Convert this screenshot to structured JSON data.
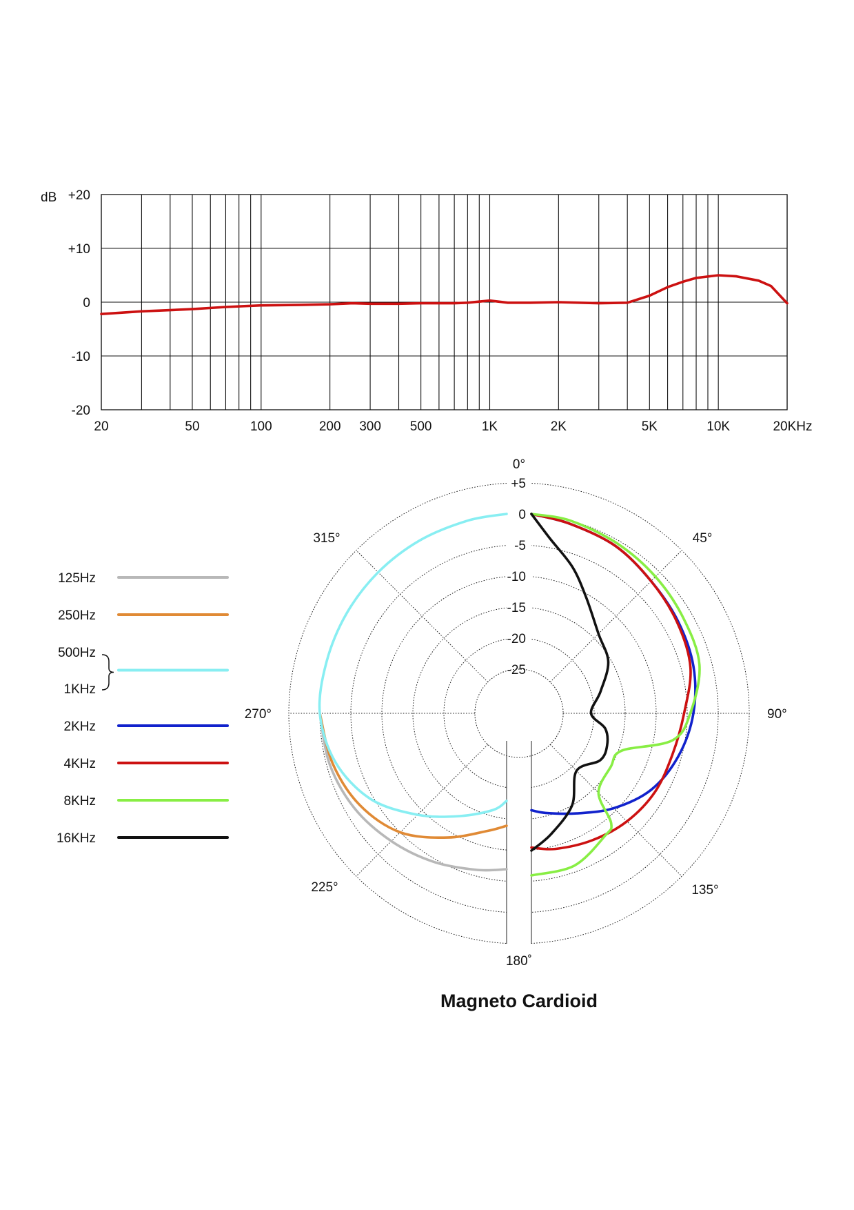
{
  "charts": [
    {
      "chart_data": {
        "type": "line",
        "title": "",
        "ylabel": "dB",
        "xscale": "log",
        "xlim": [
          20,
          20000
        ],
        "ylim": [
          -20,
          20
        ],
        "grid": true,
        "x_ticks": [
          {
            "value": 20,
            "label": "20"
          },
          {
            "value": 50,
            "label": "50"
          },
          {
            "value": 100,
            "label": "100"
          },
          {
            "value": 200,
            "label": "200"
          },
          {
            "value": 300,
            "label": "300"
          },
          {
            "value": 500,
            "label": "500"
          },
          {
            "value": 1000,
            "label": "1K"
          },
          {
            "value": 2000,
            "label": "2K"
          },
          {
            "value": 5000,
            "label": "5K"
          },
          {
            "value": 10000,
            "label": "10K"
          },
          {
            "value": 20000,
            "label": "20KHz"
          }
        ],
        "y_ticks": [
          {
            "value": 20,
            "label": "+20"
          },
          {
            "value": 10,
            "label": "+10"
          },
          {
            "value": 0,
            "label": "0"
          },
          {
            "value": -10,
            "label": "-10"
          },
          {
            "value": -20,
            "label": "-20"
          }
        ],
        "series": [
          {
            "color": "#cc1111",
            "x": [
              20,
              30,
              50,
              70,
              100,
              150,
              200,
              250,
              300,
              400,
              500,
              700,
              800,
              1000,
              1200,
              1500,
              2000,
              3000,
              4000,
              5000,
              6000,
              7000,
              8000,
              10000,
              12000,
              15000,
              17000,
              20000
            ],
            "y": [
              -2.2,
              -1.7,
              -1.3,
              -0.9,
              -0.6,
              -0.5,
              -0.4,
              -0.2,
              -0.3,
              -0.3,
              -0.2,
              -0.2,
              -0.1,
              0.3,
              -0.1,
              -0.1,
              0,
              -0.2,
              -0.1,
              1.2,
              2.8,
              3.8,
              4.5,
              5.0,
              4.8,
              4.0,
              3.0,
              -0.2
            ]
          }
        ]
      }
    },
    {
      "chart_data": {
        "type": "polar",
        "title": "Magneto Cardioid",
        "angle_ticks": [
          {
            "angle": 0,
            "label": "0°"
          },
          {
            "angle": 45,
            "label": "45°"
          },
          {
            "angle": 90,
            "label": "90°"
          },
          {
            "angle": 135,
            "label": "135°"
          },
          {
            "angle": 180,
            "label": "180˚"
          },
          {
            "angle": 225,
            "label": "225°"
          },
          {
            "angle": 270,
            "label": "270°"
          },
          {
            "angle": 315,
            "label": "315°"
          }
        ],
        "radial_range_db": [
          -30,
          5
        ],
        "radial_ticks": [
          {
            "value": 5,
            "label": "+5"
          },
          {
            "value": 0,
            "label": "0"
          },
          {
            "value": -5,
            "label": "-5"
          },
          {
            "value": -10,
            "label": "-10"
          },
          {
            "value": -15,
            "label": "-15"
          },
          {
            "value": -20,
            "label": "-20"
          },
          {
            "value": -25,
            "label": "-25"
          }
        ],
        "legend_position": "left",
        "legend_bracket": {
          "from": "500Hz",
          "to": "1KHz"
        },
        "legend": [
          {
            "label": "125Hz",
            "color": "#b8b8b8"
          },
          {
            "label": "250Hz",
            "color": "#e08a35"
          },
          {
            "label": "500Hz",
            "color": "#88eef2",
            "bracketed": true
          },
          {
            "label": "1KHz",
            "color": "#88eef2",
            "bracketed": true,
            "no_line": true
          },
          {
            "label": "2KHz",
            "color": "#1122cc"
          },
          {
            "label": "4KHz",
            "color": "#cc1111"
          },
          {
            "label": "8KHz",
            "color": "#88ee44"
          },
          {
            "label": "16KHz",
            "color": "#111111"
          }
        ],
        "series": [
          {
            "name": "125Hz",
            "color": "#b8b8b8",
            "side": "left",
            "angles": [
              270,
              255,
              240,
              225,
              210,
              195,
              180
            ],
            "db": [
              0,
              -0.5,
              -1.5,
              -3,
              -4.5,
              -6,
              -7
            ]
          },
          {
            "name": "250Hz",
            "color": "#e08a35",
            "side": "left",
            "angles": [
              270,
              255,
              240,
              225,
              210,
              195,
              180
            ],
            "db": [
              0,
              -1,
              -2.5,
              -5,
              -9,
              -12.5,
              -14
            ]
          },
          {
            "name": "500Hz / 1KHz",
            "color": "#88eef2",
            "side": "left",
            "angles": [
              360,
              345,
              330,
              315,
              300,
              285,
              270,
              255,
              240,
              225,
              210,
              195,
              180
            ],
            "db": [
              0,
              0,
              0,
              0,
              0,
              0,
              0,
              -1.5,
              -4.5,
              -9,
              -13,
              -16,
              -18
            ]
          },
          {
            "name": "2KHz",
            "color": "#1122cc",
            "side": "right",
            "angles": [
              0,
              15,
              30,
              45,
              60,
              75,
              90,
              105,
              120,
              135,
              150,
              165,
              180
            ],
            "db": [
              0,
              -0.5,
              -1,
              -2,
              -2.5,
              -3,
              -4,
              -5.5,
              -7.5,
              -10.5,
              -13.5,
              -15.5,
              -16.5
            ]
          },
          {
            "name": "4KHz",
            "color": "#cc1111",
            "side": "right",
            "angles": [
              0,
              15,
              30,
              45,
              60,
              75,
              90,
              105,
              120,
              135,
              150,
              165,
              180
            ],
            "db": [
              0,
              -0.5,
              -1,
              -2,
              -2.7,
              -3.5,
              -5.5,
              -6.5,
              -6.8,
              -7.5,
              -8.5,
              -9.5,
              -10.5
            ]
          },
          {
            "name": "8KHz",
            "color": "#88ee44",
            "side": "right",
            "angles": [
              0,
              15,
              30,
              45,
              60,
              75,
              90,
              100,
              110,
              120,
              135,
              140,
              145,
              160,
              180
            ],
            "db": [
              0,
              0,
              -0.5,
              -1,
              -1.5,
              -2,
              -4.5,
              -7,
              -14.5,
              -15,
              -14,
              -9,
              -8,
              -6,
              -6
            ]
          },
          {
            "name": "16KHz",
            "color": "#111111",
            "side": "right",
            "angles": [
              0,
              10,
              20,
              30,
              45,
              60,
              75,
              90,
              100,
              110,
              120,
              135,
              150,
              165,
              180
            ],
            "db": [
              0,
              -3.5,
              -7,
              -10.5,
              -14,
              -15.5,
              -18.5,
              -20.5,
              -18,
              -17,
              -17,
              -19,
              -15,
              -12,
              -10
            ]
          }
        ]
      }
    }
  ]
}
